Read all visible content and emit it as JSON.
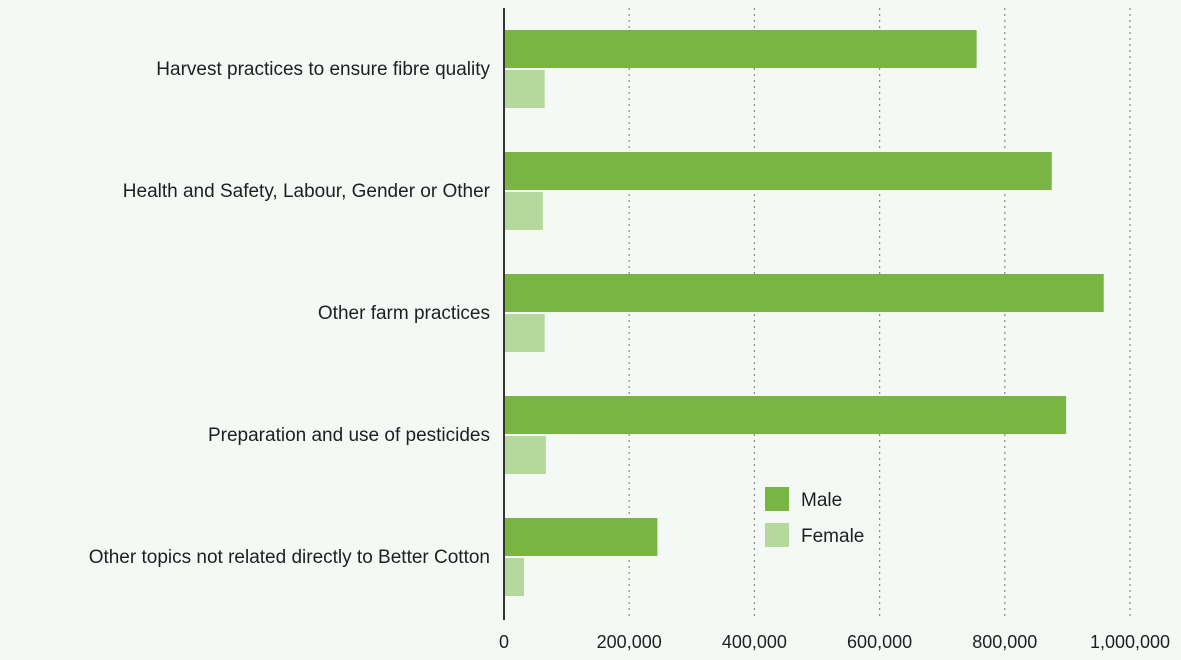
{
  "chart_data": {
    "type": "bar",
    "orientation": "horizontal",
    "categories": [
      "Harvest practices to ensure fibre quality",
      "Health and Safety, Labour, Gender or Other",
      "Other farm practices",
      "Preparation and use of pesticides",
      "Other topics not related directly to Better Cotton"
    ],
    "series": [
      {
        "name": "Male",
        "values": [
          755000,
          875000,
          958000,
          898000,
          245000
        ],
        "color": "#78b543"
      },
      {
        "name": "Female",
        "values": [
          65000,
          62000,
          65000,
          67000,
          32000
        ],
        "color": "#b5d99c"
      }
    ],
    "xlim": [
      0,
      1000000
    ],
    "x_ticks": [
      0,
      200000,
      400000,
      600000,
      800000,
      1000000
    ],
    "x_tick_labels": [
      "0",
      "200,000",
      "400,000",
      "600,000",
      "800,000",
      "1,000,000"
    ],
    "title": "",
    "xlabel": "",
    "ylabel": "",
    "grid": "vertical dotted",
    "legend": {
      "position": "inside bottom-right",
      "entries": [
        "Male",
        "Female"
      ]
    }
  }
}
